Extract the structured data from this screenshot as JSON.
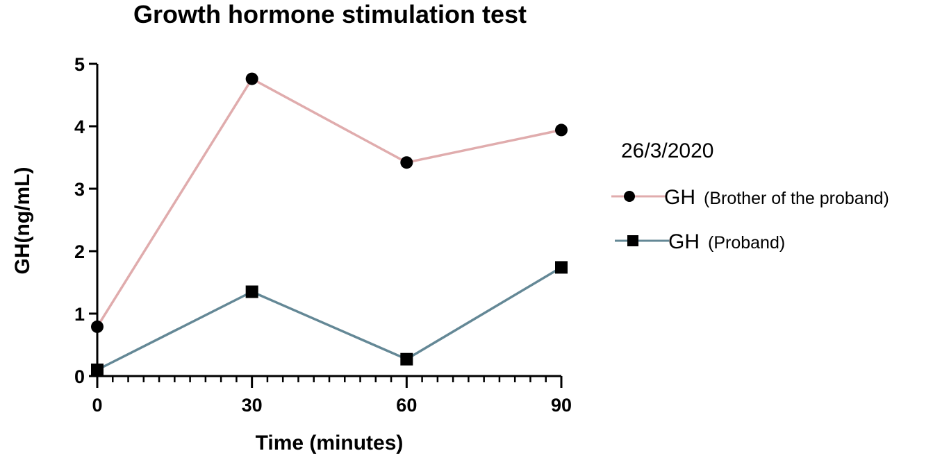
{
  "chart_data": {
    "type": "line",
    "title": "Growth hormone stimulation test",
    "xlabel": "Time (minutes)",
    "ylabel": "GH(ng/mL)",
    "x": [
      0,
      30,
      60,
      90
    ],
    "xticks": [
      0,
      30,
      60,
      90
    ],
    "xlim": [
      0,
      90
    ],
    "yticks": [
      0,
      1,
      2,
      3,
      4,
      5
    ],
    "ylim": [
      0,
      5
    ],
    "grid": false,
    "legend_title": "26/3/2020",
    "legend_position": "right",
    "series": [
      {
        "gh": "GH",
        "desc": "(Brother of the proband)",
        "values": [
          0.79,
          4.76,
          3.42,
          3.94
        ],
        "color": "#e0acad",
        "marker": "circle"
      },
      {
        "gh": "GH",
        "desc": "(Proband)",
        "values": [
          0.1,
          1.35,
          0.27,
          1.74
        ],
        "color": "#648896",
        "marker": "square"
      }
    ]
  }
}
